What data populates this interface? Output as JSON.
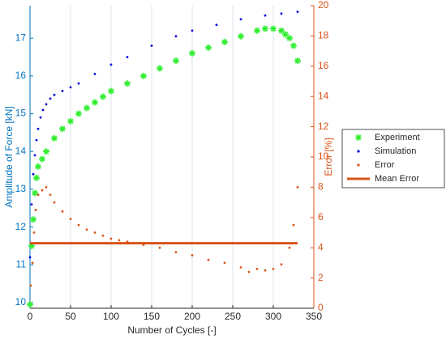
{
  "chart_data": {
    "type": "scatter",
    "xlabel": "Number of Cycles [-]",
    "ylabel": "Amplitude of Force [kN]",
    "y2label": "Error [%]",
    "xlim": [
      0,
      350
    ],
    "xticks": [
      0,
      50,
      100,
      150,
      200,
      250,
      300,
      350
    ],
    "ylim": [
      9.85,
      17.86
    ],
    "yticks": [
      10,
      11,
      12,
      13,
      14,
      15,
      16,
      17
    ],
    "y2lim": [
      0,
      20
    ],
    "y2ticks": [
      0,
      2,
      4,
      6,
      8,
      10,
      12,
      14,
      16,
      18,
      20
    ],
    "grid": "x",
    "ycolor": "#0072bd",
    "y2color": "#d95319",
    "legend": "right",
    "series": [
      {
        "name": "Experiment",
        "color": "#33ee33",
        "marker": "asterisk",
        "x": [
          0,
          2,
          4,
          6,
          8,
          10,
          15,
          20,
          30,
          40,
          50,
          60,
          70,
          80,
          90,
          100,
          120,
          140,
          160,
          180,
          200,
          220,
          240,
          260,
          280,
          290,
          300,
          310,
          315,
          320,
          325,
          330
        ],
        "values": [
          9.95,
          11.5,
          12.2,
          12.9,
          13.3,
          13.6,
          13.8,
          14.0,
          14.35,
          14.6,
          14.8,
          15.0,
          15.15,
          15.3,
          15.45,
          15.6,
          15.8,
          16.0,
          16.2,
          16.4,
          16.6,
          16.75,
          16.9,
          17.05,
          17.2,
          17.25,
          17.25,
          17.2,
          17.1,
          17.0,
          16.8,
          16.4
        ]
      },
      {
        "name": "Simulation",
        "color": "#0000dd",
        "marker": "dot",
        "x": [
          0,
          2,
          4,
          6,
          8,
          10,
          13,
          16,
          20,
          25,
          30,
          40,
          50,
          60,
          80,
          100,
          120,
          150,
          180,
          200,
          230,
          260,
          290,
          310,
          330
        ],
        "values": [
          11.2,
          12.6,
          13.4,
          13.9,
          14.3,
          14.6,
          14.9,
          15.1,
          15.25,
          15.4,
          15.5,
          15.6,
          15.7,
          15.8,
          16.05,
          16.3,
          16.5,
          16.8,
          17.05,
          17.2,
          17.35,
          17.5,
          17.6,
          17.65,
          17.7
        ]
      },
      {
        "name": "Error",
        "color": "#d95319",
        "marker": "dot",
        "axis": "y2",
        "x": [
          1,
          3,
          5,
          7,
          10,
          15,
          20,
          25,
          30,
          40,
          50,
          60,
          70,
          80,
          90,
          100,
          110,
          120,
          140,
          160,
          180,
          200,
          220,
          240,
          260,
          270,
          280,
          290,
          300,
          310,
          320,
          325,
          330
        ],
        "values": [
          1.5,
          3,
          5,
          6.5,
          7.5,
          7.8,
          8,
          7.5,
          7,
          6.4,
          5.9,
          5.5,
          5.2,
          5.0,
          4.8,
          4.6,
          4.5,
          4.4,
          4.2,
          4.0,
          3.7,
          3.5,
          3.2,
          3.0,
          2.7,
          2.4,
          2.6,
          2.5,
          2.6,
          2.9,
          4.0,
          5.5,
          8.0
        ]
      },
      {
        "name": "Mean Error",
        "color": "#d95319",
        "marker": "line",
        "axis": "y2",
        "x": [
          0,
          330
        ],
        "values": [
          4.3,
          4.3
        ]
      }
    ]
  }
}
